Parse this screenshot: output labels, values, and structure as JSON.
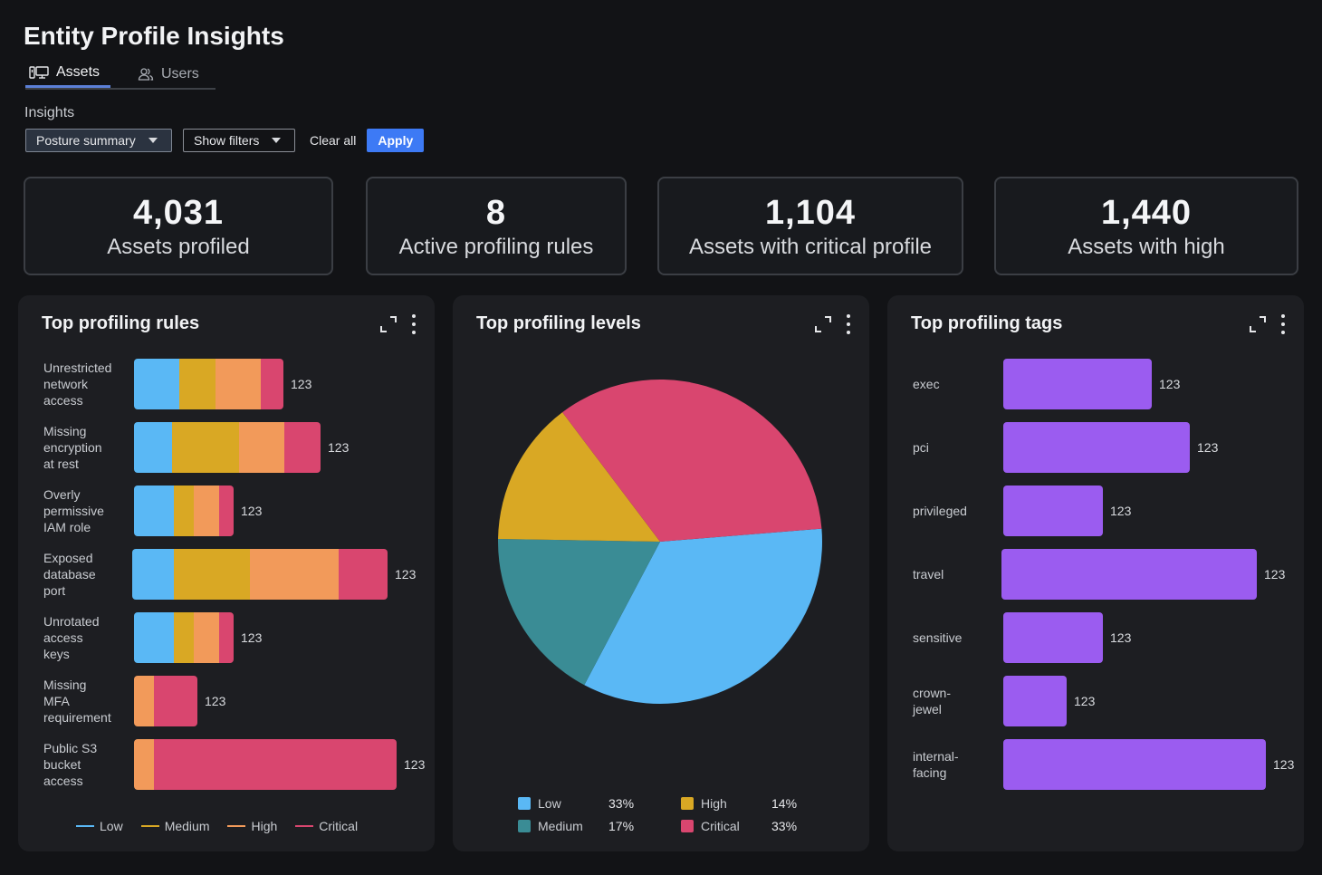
{
  "page": {
    "title": "Entity Profile Insights"
  },
  "tabs": [
    {
      "label": "Assets",
      "icon": "monitor-icon",
      "active": true
    },
    {
      "label": "Users",
      "icon": "users-icon",
      "active": false
    }
  ],
  "insights": {
    "label": "Insights",
    "dropdown_value": "Posture summary",
    "filters_label": "Show filters",
    "clear_label": "Clear all",
    "apply_label": "Apply"
  },
  "kpis": [
    {
      "value": "4,031",
      "label": "Assets profiled"
    },
    {
      "value": "8",
      "label": "Active profiling rules"
    },
    {
      "value": "1,104",
      "label": "Assets with critical profile"
    },
    {
      "value": "1,440",
      "label": "Assets with high"
    }
  ],
  "colors": {
    "low": "#5ab8f5",
    "medium": "#d9a824",
    "high": "#f29a5a",
    "critical": "#d9466f",
    "purple": "#9b5cf0",
    "teal": "#3a8c95"
  },
  "rules_panel": {
    "title": "Top profiling rules",
    "rows": [
      {
        "lines": [
          "Unrestricted",
          "network",
          "access"
        ],
        "value": "123",
        "segments": [
          50,
          40,
          50,
          25
        ]
      },
      {
        "lines": [
          "Missing",
          "encryption",
          "at rest"
        ],
        "value": "123",
        "segments": [
          42,
          74,
          50,
          40
        ]
      },
      {
        "lines": [
          "Overly",
          "permissive",
          "IAM role"
        ],
        "value": "123",
        "segments": [
          44,
          22,
          28,
          16
        ]
      },
      {
        "lines": [
          "Exposed",
          "database",
          "port"
        ],
        "value": "123",
        "segments": [
          46,
          84,
          98,
          54
        ]
      },
      {
        "lines": [
          "Unrotated",
          "access",
          "keys"
        ],
        "value": "123",
        "segments": [
          44,
          22,
          28,
          16
        ]
      },
      {
        "lines": [
          "Missing",
          "MFA",
          "requirement"
        ],
        "value": "123",
        "segments": [
          0,
          0,
          22,
          48
        ]
      },
      {
        "lines": [
          "Public S3",
          "bucket",
          "access"
        ],
        "value": "123",
        "segments": [
          0,
          0,
          22,
          268
        ]
      }
    ],
    "legend": [
      "Low",
      "Medium",
      "High",
      "Critical"
    ]
  },
  "levels_panel": {
    "title": "Top profiling levels",
    "chart_data": {
      "type": "pie",
      "categories": [
        "Low",
        "Medium",
        "High",
        "Critical"
      ],
      "values": [
        33,
        17,
        14,
        33
      ],
      "labels": [
        "33%",
        "17%",
        "14%",
        "33%"
      ]
    }
  },
  "tags_panel": {
    "title": "Top profiling tags",
    "rows": [
      {
        "lines": [
          "exec"
        ],
        "value": "123",
        "length": 164
      },
      {
        "lines": [
          "pci"
        ],
        "value": "123",
        "length": 206
      },
      {
        "lines": [
          "privileged"
        ],
        "value": "123",
        "length": 110
      },
      {
        "lines": [
          "travel"
        ],
        "value": "123",
        "length": 282
      },
      {
        "lines": [
          "sensitive"
        ],
        "value": "123",
        "length": 110
      },
      {
        "lines": [
          "crown-",
          "jewel"
        ],
        "value": "123",
        "length": 70
      },
      {
        "lines": [
          "internal-",
          "facing"
        ],
        "value": "123",
        "length": 290
      }
    ]
  }
}
